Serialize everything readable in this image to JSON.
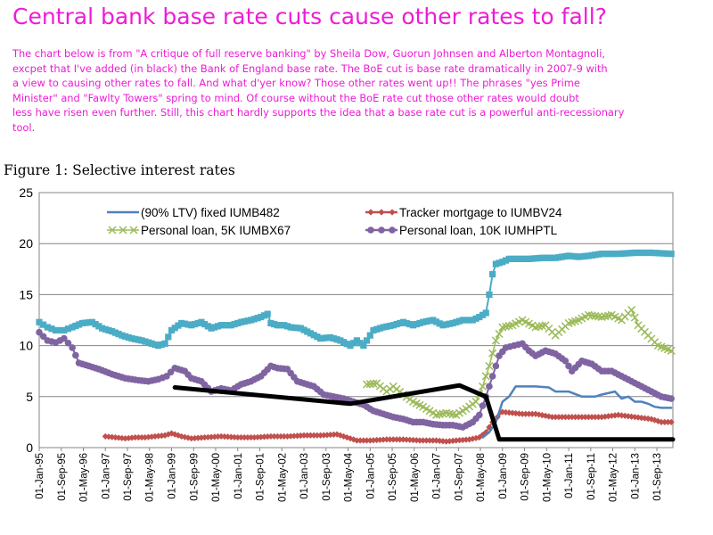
{
  "header": {
    "title": "Central bank base rate cuts cause other rates to fall?",
    "intro_lines": [
      "The chart below is from \"A critique of full reserve banking\" by Sheila Dow, Guorun Johnsen and Alberton Montagnoli,",
      "excpet that I've added (in black) the Bank of England base rate. The BoE cut is base rate dramatically in 2007-9 with",
      "a view to causing other rates to fall. And what d'yer know? Those other rates went up!! The phrases \"yes Prime",
      "Minister\" and \"Fawlty Towers\" spring to mind. Of course without the BoE rate cut those other rates would doubt",
      "less have risen even further. Still, this chart hardly supports the idea that a base rate cut is a powerful anti-recessionary",
      "tool."
    ]
  },
  "colors": {
    "title": "#ee1bd6",
    "fixed": "#4f81bd",
    "tracker": "#c0504d",
    "loan5k": "#9bbb59",
    "loan10k": "#8064a2",
    "cyan": "#4bacc6",
    "base": "#000000"
  },
  "chart_data": {
    "type": "line",
    "title": "Figure 1: Selective interest rates",
    "xlabel": "",
    "ylabel": "",
    "ylim": [
      0,
      25
    ],
    "xlim": [
      1995.0,
      2014.15
    ],
    "y_ticks": [
      0,
      5,
      10,
      15,
      20,
      25
    ],
    "x_ticks": [
      "01-Jan-95",
      "01-Sep-95",
      "01-May-96",
      "01-Jan-97",
      "01-Sep-97",
      "01-May-98",
      "01-Jan-99",
      "01-Sep-99",
      "01-May-00",
      "01-Jan-01",
      "01-Sep-01",
      "01-May-02",
      "01-Jan-03",
      "01-Sep-03",
      "01-May-04",
      "01-Jan-05",
      "01-Sep-05",
      "01-May-06",
      "01-Jan-07",
      "01-Sep-07",
      "01-May-08",
      "01-Jan-09",
      "01-Sep-09",
      "01-May-10",
      "01-Jan-11",
      "01-Sep-11",
      "01-May-12",
      "01-Jan-13",
      "01-Sep-13"
    ],
    "x_tick_values": [
      1995.0,
      1995.667,
      1996.333,
      1997.0,
      1997.667,
      1998.333,
      1999.0,
      1999.667,
      2000.333,
      2001.0,
      2001.667,
      2002.333,
      2003.0,
      2003.667,
      2004.333,
      2005.0,
      2005.667,
      2006.333,
      2007.0,
      2007.667,
      2008.333,
      2009.0,
      2009.667,
      2010.333,
      2011.0,
      2011.667,
      2012.333,
      2013.0,
      2013.667
    ],
    "legend": [
      "(90% LTV) fixed IUMB482",
      "Tracker mortgage to IUMBV24",
      "Personal loan, 5K IUMBX67",
      "Personal loan, 10K IUMHPTL"
    ],
    "legend_position": "top",
    "series": [
      {
        "name": "(90% LTV) fixed IUMB482",
        "key": "fixed",
        "marker": "none",
        "x": [
          2008.4,
          2008.6,
          2008.8,
          2009.0,
          2009.2,
          2009.4,
          2009.6,
          2010.0,
          2010.4,
          2010.6,
          2011.0,
          2011.4,
          2011.8,
          2012.0,
          2012.4,
          2012.6,
          2012.8,
          2013.0,
          2013.2,
          2013.4,
          2013.6,
          2013.8,
          2014.1
        ],
        "y": [
          1.0,
          1.5,
          2.5,
          4.5,
          5.0,
          6.0,
          6.0,
          6.0,
          5.9,
          5.5,
          5.5,
          5.0,
          5.0,
          5.2,
          5.5,
          4.8,
          5.0,
          4.5,
          4.5,
          4.3,
          4.0,
          3.9,
          3.9
        ]
      },
      {
        "name": "Tracker mortgage to IUMBV24",
        "key": "tracker",
        "marker": "diamond",
        "x": [
          1997.0,
          1997.3,
          1997.6,
          1997.9,
          1998.2,
          1998.5,
          1998.8,
          1999.0,
          1999.3,
          1999.6,
          2000.0,
          2000.5,
          2001.0,
          2001.5,
          2002.0,
          2002.5,
          2003.0,
          2003.5,
          2004.0,
          2004.3,
          2004.6,
          2005.0,
          2005.5,
          2006.0,
          2006.5,
          2007.0,
          2007.3,
          2007.6,
          2008.0,
          2008.3,
          2008.5,
          2008.7,
          2008.85,
          2009.0,
          2009.3,
          2009.6,
          2010.0,
          2010.5,
          2011.0,
          2011.5,
          2012.0,
          2012.5,
          2013.0,
          2013.5,
          2013.8,
          2014.1
        ],
        "y": [
          1.1,
          1.0,
          0.9,
          1.0,
          1.0,
          1.1,
          1.2,
          1.4,
          1.1,
          0.9,
          1.0,
          1.1,
          1.0,
          1.0,
          1.1,
          1.1,
          1.2,
          1.2,
          1.3,
          1.0,
          0.7,
          0.7,
          0.8,
          0.8,
          0.7,
          0.7,
          0.6,
          0.7,
          0.8,
          1.0,
          1.5,
          2.5,
          3.0,
          3.5,
          3.4,
          3.3,
          3.3,
          3.0,
          3.0,
          3.0,
          3.0,
          3.2,
          3.0,
          2.8,
          2.5,
          2.5
        ]
      },
      {
        "name": "Personal loan, 5K IUMBX67",
        "key": "loan5k",
        "marker": "x",
        "x": [
          2004.9,
          2005.2,
          2005.5,
          2005.7,
          2006.0,
          2006.3,
          2006.6,
          2007.0,
          2007.3,
          2007.6,
          2007.9,
          2008.2,
          2008.4,
          2008.6,
          2008.8,
          2009.0,
          2009.3,
          2009.6,
          2010.0,
          2010.3,
          2010.6,
          2011.0,
          2011.3,
          2011.6,
          2012.0,
          2012.3,
          2012.6,
          2012.9,
          2013.1,
          2013.4,
          2013.7,
          2014.1
        ],
        "y": [
          6.2,
          6.3,
          5.5,
          6.0,
          5.2,
          4.5,
          4.0,
          3.2,
          3.4,
          3.2,
          3.8,
          4.5,
          6.0,
          8.0,
          10.5,
          11.8,
          12.0,
          12.5,
          11.8,
          12.0,
          11.0,
          12.2,
          12.5,
          13.0,
          12.8,
          13.0,
          12.5,
          13.5,
          12.0,
          11.0,
          10.0,
          9.5
        ]
      },
      {
        "name": "Personal loan, 10K IUMHPTL",
        "key": "loan10k",
        "marker": "circle",
        "x": [
          1995.0,
          1995.25,
          1995.5,
          1995.75,
          1996.0,
          1996.2,
          1996.5,
          1996.8,
          1997.2,
          1997.6,
          1998.0,
          1998.3,
          1998.6,
          1998.85,
          1999.1,
          1999.4,
          1999.6,
          1999.9,
          2000.2,
          2000.5,
          2000.8,
          2001.1,
          2001.4,
          2001.7,
          2002.0,
          2002.2,
          2002.5,
          2002.8,
          2003.0,
          2003.3,
          2003.6,
          2003.9,
          2004.2,
          2004.5,
          2004.8,
          2005.1,
          2005.4,
          2005.7,
          2006.0,
          2006.3,
          2006.6,
          2006.9,
          2007.2,
          2007.5,
          2007.8,
          2008.1,
          2008.3,
          2008.5,
          2008.7,
          2008.9,
          2009.1,
          2009.35,
          2009.6,
          2009.8,
          2010.0,
          2010.3,
          2010.6,
          2010.9,
          2011.1,
          2011.4,
          2011.7,
          2012.0,
          2012.3,
          2012.6,
          2012.9,
          2013.2,
          2013.5,
          2013.8,
          2014.1
        ],
        "y": [
          11.3,
          10.5,
          10.3,
          10.7,
          9.8,
          8.3,
          8.0,
          7.7,
          7.2,
          6.8,
          6.6,
          6.5,
          6.7,
          7.0,
          7.8,
          7.5,
          6.8,
          6.5,
          5.5,
          5.8,
          5.6,
          6.2,
          6.5,
          7.0,
          8.0,
          7.8,
          7.7,
          6.5,
          6.3,
          6.0,
          5.2,
          5.0,
          4.8,
          4.5,
          4.2,
          3.6,
          3.3,
          3.0,
          2.8,
          2.5,
          2.5,
          2.3,
          2.2,
          2.2,
          2.0,
          2.5,
          3.2,
          5.0,
          7.0,
          9.0,
          9.8,
          10.0,
          10.2,
          9.5,
          9.0,
          9.5,
          9.2,
          8.5,
          7.5,
          8.5,
          8.2,
          7.5,
          7.5,
          7.0,
          6.5,
          6.0,
          5.5,
          5.0,
          4.8
        ]
      },
      {
        "name": "(unlabelled cyan series)",
        "key": "cyan",
        "marker": "square",
        "x": [
          1995.0,
          1995.25,
          1995.5,
          1995.75,
          1996.0,
          1996.3,
          1996.6,
          1996.9,
          1997.2,
          1997.5,
          1997.8,
          1998.1,
          1998.4,
          1998.6,
          1998.8,
          1999.0,
          1999.3,
          1999.6,
          1999.9,
          2000.2,
          2000.5,
          2000.8,
          2001.1,
          2001.4,
          2001.7,
          2001.9,
          2002.0,
          2002.2,
          2002.4,
          2002.6,
          2002.9,
          2003.2,
          2003.5,
          2003.8,
          2004.1,
          2004.4,
          2004.6,
          2004.8,
          2005.1,
          2005.4,
          2005.7,
          2006.0,
          2006.3,
          2006.6,
          2006.9,
          2007.2,
          2007.5,
          2007.8,
          2008.1,
          2008.3,
          2008.5,
          2008.6,
          2008.7,
          2008.8,
          2009.0,
          2009.2,
          2009.5,
          2009.8,
          2010.2,
          2010.6,
          2011.0,
          2011.3,
          2011.6,
          2012.0,
          2012.5,
          2013.0,
          2013.5,
          2014.1
        ],
        "y": [
          12.3,
          11.8,
          11.5,
          11.5,
          11.8,
          12.2,
          12.3,
          11.7,
          11.4,
          11.0,
          10.7,
          10.5,
          10.2,
          10.0,
          10.2,
          11.5,
          12.2,
          12.0,
          12.3,
          11.7,
          12.0,
          12.0,
          12.3,
          12.5,
          12.8,
          13.1,
          12.2,
          12.0,
          12.0,
          11.8,
          11.7,
          11.2,
          10.7,
          10.8,
          10.5,
          10.0,
          10.5,
          10.0,
          11.5,
          11.8,
          12.0,
          12.3,
          12.0,
          12.3,
          12.5,
          12.0,
          12.2,
          12.5,
          12.5,
          12.8,
          13.2,
          15.0,
          17.0,
          18.0,
          18.2,
          18.5,
          18.5,
          18.5,
          18.6,
          18.6,
          18.8,
          18.7,
          18.8,
          19.0,
          19.0,
          19.1,
          19.1,
          19.0
        ]
      },
      {
        "name": "Bank of England base rate",
        "key": "base",
        "marker": "none",
        "x": [
          1999.1,
          2004.4,
          2007.7,
          2008.5,
          2008.9,
          2014.15
        ],
        "y": [
          5.9,
          4.3,
          6.1,
          5.0,
          0.8,
          0.8
        ]
      }
    ]
  }
}
